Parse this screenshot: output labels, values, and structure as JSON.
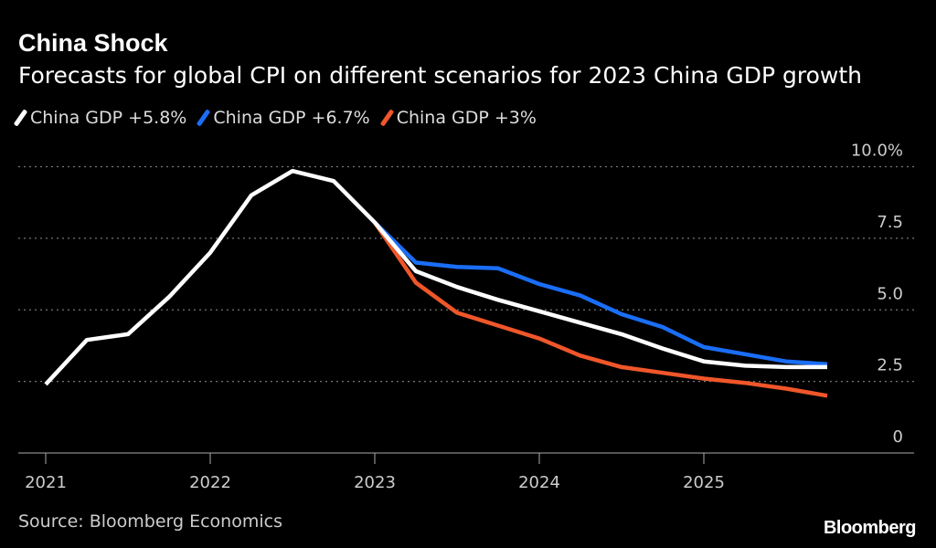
{
  "header": {
    "title": "China Shock",
    "subtitle": "Forecasts for global CPI on different scenarios for 2023 China GDP growth"
  },
  "footer": {
    "source": "Source: Bloomberg Economics",
    "logo": "Bloomberg"
  },
  "chart_data": {
    "type": "line",
    "title": "China Shock",
    "subtitle": "Forecasts for global CPI on different scenarios for 2023 China GDP growth",
    "x_ticks": [
      "2021",
      "2022",
      "2023",
      "2024",
      "2025"
    ],
    "y_ticks": [
      "0",
      "2.5",
      "5.0",
      "7.5",
      "10.0%"
    ],
    "y_tick_values": [
      0,
      2.5,
      5,
      7.5,
      10
    ],
    "ylim": [
      0,
      10
    ],
    "xlim": [
      2021,
      2026
    ],
    "grid": "horizontal dotted",
    "legend_position": "top-left",
    "series": [
      {
        "name": "China GDP +5.8%",
        "color": "#ffffff",
        "x": [
          2021.0,
          2021.25,
          2021.5,
          2021.75,
          2022.0,
          2022.25,
          2022.5,
          2022.75,
          2023.0,
          2023.25,
          2023.5,
          2023.75,
          2024.0,
          2024.25,
          2024.5,
          2024.75,
          2025.0,
          2025.25,
          2025.5,
          2025.75
        ],
        "values": [
          2.4,
          3.95,
          4.15,
          5.45,
          7.0,
          9.0,
          9.85,
          9.5,
          8.05,
          6.35,
          5.8,
          5.35,
          4.95,
          4.55,
          4.15,
          3.65,
          3.2,
          3.05,
          3.0,
          3.0
        ]
      },
      {
        "name": "China GDP +6.7%",
        "color": "#1a6ef5",
        "x": [
          2023.0,
          2023.25,
          2023.5,
          2023.75,
          2024.0,
          2024.25,
          2024.5,
          2024.75,
          2025.0,
          2025.25,
          2025.5,
          2025.75
        ],
        "values": [
          8.05,
          6.65,
          6.5,
          6.45,
          5.9,
          5.5,
          4.85,
          4.4,
          3.7,
          3.45,
          3.2,
          3.1
        ]
      },
      {
        "name": "China GDP +3%",
        "color": "#f0562a",
        "x": [
          2023.0,
          2023.25,
          2023.5,
          2023.75,
          2024.0,
          2024.25,
          2024.5,
          2024.75,
          2025.0,
          2025.25,
          2025.5,
          2025.75
        ],
        "values": [
          8.05,
          5.95,
          4.9,
          4.45,
          4.0,
          3.4,
          3.0,
          2.8,
          2.6,
          2.45,
          2.25,
          2.0
        ]
      }
    ]
  }
}
